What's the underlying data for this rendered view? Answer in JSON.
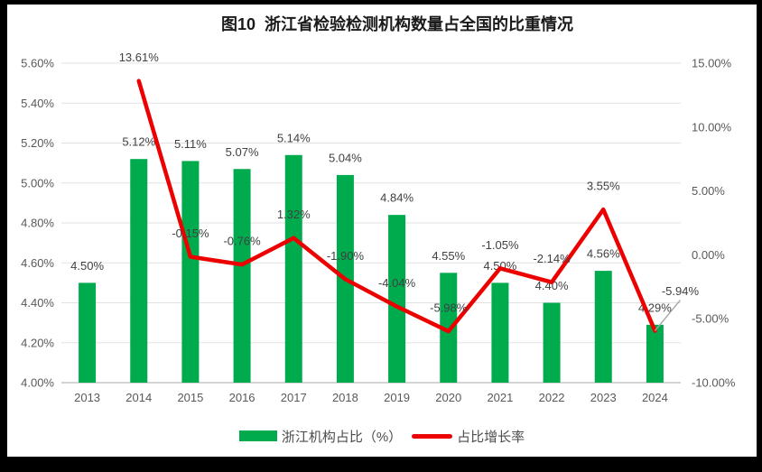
{
  "frame": {
    "background": "#000000",
    "panel_background": "#FFFFFF"
  },
  "chart_data": {
    "type": "combo",
    "title": "图10  浙江省检验检测机构数量占全国的比重情况",
    "categories": [
      "2013",
      "2014",
      "2015",
      "2016",
      "2017",
      "2018",
      "2019",
      "2020",
      "2021",
      "2022",
      "2023",
      "2024"
    ],
    "series": [
      {
        "name": "浙江机构占比（%）",
        "chart_type": "bar",
        "axis": "left",
        "color": "#00AB4E",
        "values": [
          4.5,
          5.12,
          5.11,
          5.07,
          5.14,
          5.04,
          4.84,
          4.55,
          4.5,
          4.4,
          4.56,
          4.29
        ],
        "labels": [
          "4.50%",
          "5.12%",
          "5.11%",
          "5.07%",
          "5.14%",
          "5.04%",
          "4.84%",
          "4.55%",
          "4.50%",
          "4.40%",
          "4.56%",
          "4.29%"
        ]
      },
      {
        "name": "占比增长率",
        "chart_type": "line",
        "axis": "right",
        "color": "#EC0000",
        "values": [
          null,
          13.61,
          -0.15,
          -0.76,
          1.32,
          -1.9,
          -4.04,
          -5.98,
          -1.05,
          -2.14,
          3.55,
          -5.94
        ],
        "labels": [
          null,
          "13.61%",
          "-0.15%",
          "-0.76%",
          "1.32%",
          "-1.90%",
          "-4.04%",
          "-5.98%",
          "-1.05%",
          "-2.14%",
          "3.55%",
          "-5.94%"
        ],
        "callout_label_index": 11,
        "callout_leader_color": "#A6A6A6"
      }
    ],
    "left_axis": {
      "min": 4.0,
      "max": 5.6,
      "step": 0.2,
      "ticks": [
        "4.00%",
        "4.20%",
        "4.40%",
        "4.60%",
        "4.80%",
        "5.00%",
        "5.20%",
        "5.40%",
        "5.60%"
      ]
    },
    "right_axis": {
      "min": -10,
      "max": 15,
      "step": 5,
      "ticks": [
        "-10.00%",
        "-5.00%",
        "0.00%",
        "5.00%",
        "10.00%",
        "15.00%"
      ]
    },
    "grid": true,
    "legend_position": "bottom",
    "text_colors": {
      "axis": "#595959",
      "data_label": "#404040",
      "title": "#1A1A1A",
      "legend": "#4D4D4D"
    },
    "grid_colors": {
      "gridline": "#E2E2E2",
      "baseline": "#C6C6C6"
    }
  }
}
